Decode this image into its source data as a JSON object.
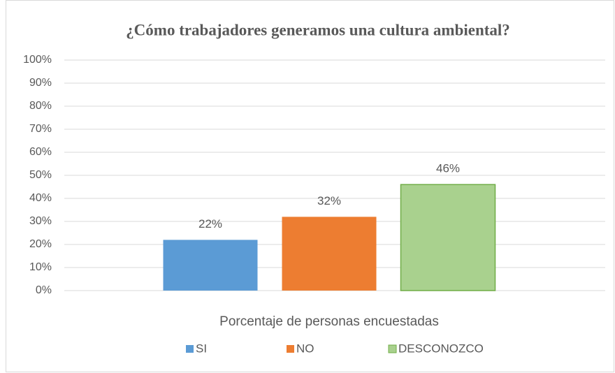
{
  "chart_data": {
    "type": "bar",
    "title": "¿Cómo trabajadores generamos una cultura ambiental?",
    "categories": [
      "Porcentaje de personas encuestadas"
    ],
    "series": [
      {
        "name": "SI",
        "color": "#5b9bd5",
        "values": [
          22
        ],
        "value_labels": [
          "22%"
        ]
      },
      {
        "name": "NO",
        "color": "#ed7d31",
        "values": [
          32
        ],
        "value_labels": [
          "32%"
        ]
      },
      {
        "name": "DESCONOZCO",
        "color": "#a9d18e",
        "edgecolor": "#70ad47",
        "values": [
          46
        ],
        "value_labels": [
          "46%"
        ]
      }
    ],
    "ylim": [
      0,
      100
    ],
    "yticks": [
      {
        "value": 0,
        "label": "0%"
      },
      {
        "value": 10,
        "label": "10%"
      },
      {
        "value": 20,
        "label": "20%"
      },
      {
        "value": 30,
        "label": "30%"
      },
      {
        "value": 40,
        "label": "40%"
      },
      {
        "value": 50,
        "label": "50%"
      },
      {
        "value": 60,
        "label": "60%"
      },
      {
        "value": 70,
        "label": "70%"
      },
      {
        "value": 80,
        "label": "80%"
      },
      {
        "value": 90,
        "label": "90%"
      },
      {
        "value": 100,
        "label": "100%"
      }
    ],
    "grid": true,
    "legend": "bottom"
  }
}
